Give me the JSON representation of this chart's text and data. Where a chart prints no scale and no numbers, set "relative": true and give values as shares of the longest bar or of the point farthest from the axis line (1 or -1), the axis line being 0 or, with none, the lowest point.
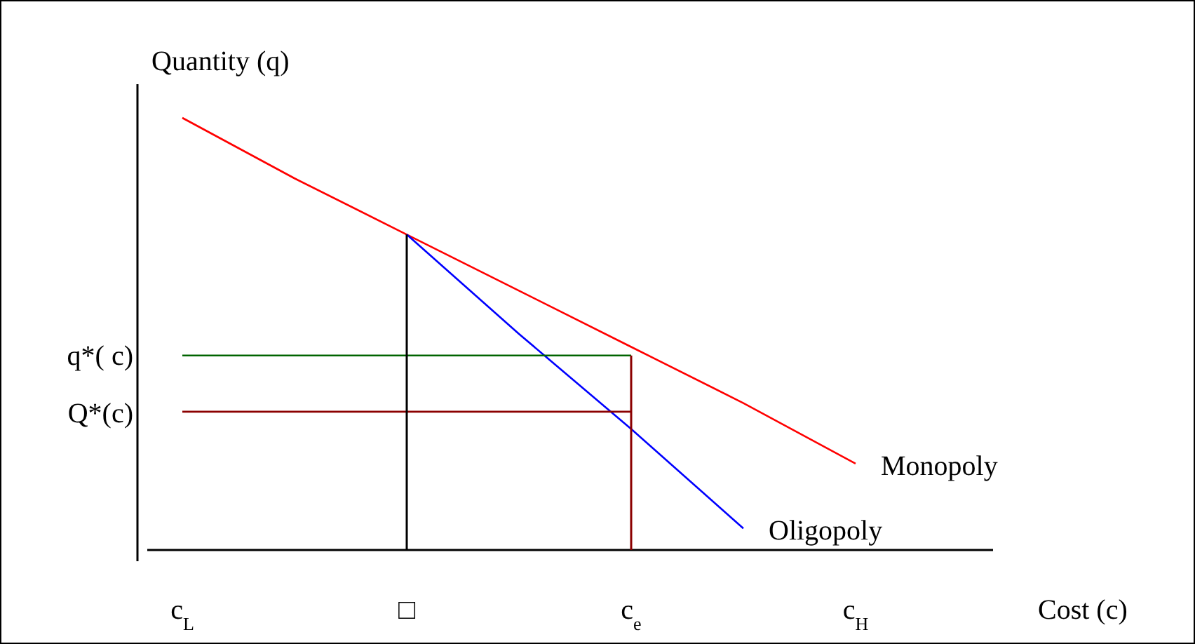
{
  "chart_data": {
    "type": "line",
    "relative": true,
    "xlabel": "Cost (c)",
    "ylabel": "Quantity (q)",
    "categories": [
      "c$_{L}$",
      null,
      "□",
      null,
      "c$_{e}$",
      null,
      "c$_{H}$"
    ],
    "series": [
      {
        "name": "Monopoly",
        "color": "#ff0000",
        "values": [
          1,
          0.86,
          0.73,
          0.6,
          0.47,
          0.34,
          0.2
        ]
      },
      {
        "name": "Oligopoly",
        "color": "#0000ff",
        "values": [
          null,
          null,
          0.73,
          0.5,
          0.28,
          0.05,
          null
        ]
      },
      {
        "color": "#006400",
        "values": [
          0.45,
          0.45,
          0.45,
          0.45,
          0.45,
          null,
          null
        ]
      },
      {
        "color": "#8b0000",
        "values": [
          0.32,
          0.32,
          0.32,
          0.32,
          0.32,
          null,
          null
        ]
      },
      {
        "type": "bar",
        "color": "#8b0000",
        "values": [
          null,
          null,
          null,
          null,
          0.45,
          null,
          null
        ]
      },
      {
        "type": "bar",
        "color": "#000000",
        "values": [
          null,
          null,
          0.73,
          null,
          null,
          null,
          null
        ]
      }
    ],
    "annotations": [
      "q*( c)",
      "Q*(c)"
    ]
  }
}
